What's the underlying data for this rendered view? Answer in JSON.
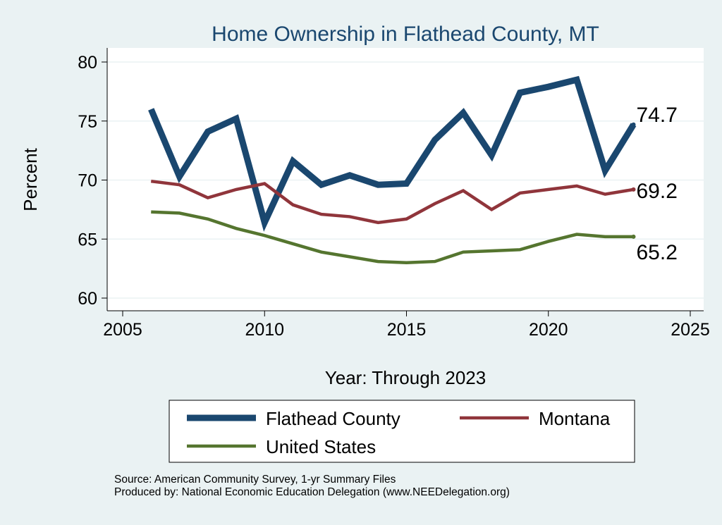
{
  "chart_data": {
    "type": "line",
    "title": "Home Ownership in Flathead County, MT",
    "xlabel": "Year: Through 2023",
    "ylabel": "Percent",
    "xlim": [
      2005,
      2025
    ],
    "ylim": [
      60,
      80
    ],
    "xticks": [
      2005,
      2010,
      2015,
      2020,
      2025
    ],
    "yticks": [
      60,
      65,
      70,
      75,
      80
    ],
    "grid": true,
    "legend_position": "bottom",
    "x": [
      2006,
      2007,
      2008,
      2009,
      2010,
      2011,
      2012,
      2013,
      2014,
      2015,
      2016,
      2017,
      2018,
      2019,
      2020,
      2021,
      2022,
      2023
    ],
    "series": [
      {
        "name": "Flathead County",
        "color": "#1a476f",
        "end_label": "74.7",
        "values": [
          76.0,
          70.3,
          74.1,
          75.2,
          66.4,
          71.6,
          69.6,
          70.4,
          69.6,
          69.7,
          73.4,
          75.7,
          72.1,
          77.4,
          77.9,
          78.5,
          70.8,
          74.7
        ]
      },
      {
        "name": "Montana",
        "color": "#90353b",
        "end_label": "69.2",
        "values": [
          69.9,
          69.6,
          68.5,
          69.2,
          69.7,
          67.9,
          67.1,
          66.9,
          66.4,
          66.7,
          68.0,
          69.1,
          67.5,
          68.9,
          69.2,
          69.5,
          68.8,
          69.2
        ]
      },
      {
        "name": "United States",
        "color": "#55752f",
        "end_label": "65.2",
        "values": [
          67.3,
          67.2,
          66.7,
          65.9,
          65.3,
          64.6,
          63.9,
          63.5,
          63.1,
          63.0,
          63.1,
          63.9,
          64.0,
          64.1,
          64.8,
          65.4,
          65.2,
          65.2
        ]
      }
    ]
  },
  "notes": {
    "source": "Source: American Community Survey, 1-yr Summary Files",
    "produced": "Produced by: National Economic Education Delegation (www.NEEDelegation.org)"
  }
}
